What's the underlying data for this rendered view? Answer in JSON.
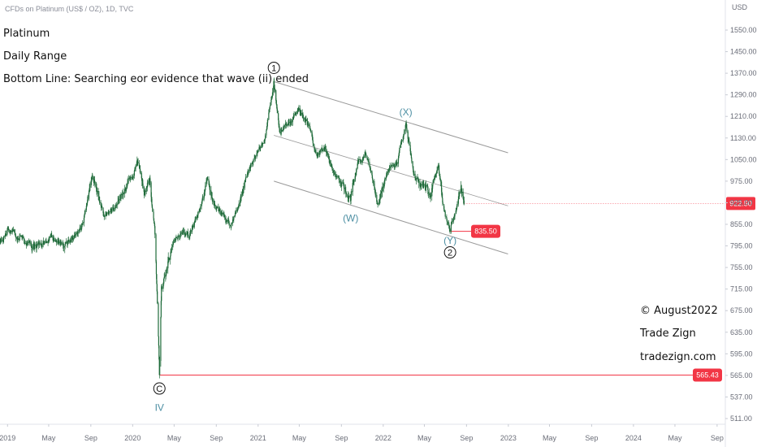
{
  "header": {
    "source": "CFDs on Platinum (US$ / OZ), 1D, TVC",
    "currency": "USD"
  },
  "annotations": {
    "title": "Platinum",
    "subtitle": "Daily Range",
    "bottom_line": "Bottom Line: Searching eor evidence that wave (ii) ended",
    "copyright": "© August2022",
    "brand": "Trade Zign",
    "website": "tradezign.com"
  },
  "colors": {
    "candle": "#1f6b3a",
    "channel": "#9a9a9a",
    "level_line": "#f23645",
    "badge": "#f23645",
    "wave_label": "#4d8fa3"
  },
  "chart_data": {
    "type": "candlestick",
    "title": "CFDs on Platinum (US$ / OZ), 1D, TVC",
    "ylabel": "USD",
    "ylim": [
      500,
      1600
    ],
    "xlim": [
      "2018-12-10",
      "2024-09-25"
    ],
    "y_ticks": [
      511,
      537,
      565,
      595,
      635,
      675,
      715,
      755,
      795,
      855,
      925,
      975,
      1050,
      1130,
      1210,
      1290,
      1370,
      1450,
      1550
    ],
    "x_ticks": [
      {
        "label": "2019",
        "date": "2019-01-01"
      },
      {
        "label": "May",
        "date": "2019-05-01"
      },
      {
        "label": "Sep",
        "date": "2019-09-01"
      },
      {
        "label": "2020",
        "date": "2020-01-01"
      },
      {
        "label": "May",
        "date": "2020-05-01"
      },
      {
        "label": "Sep",
        "date": "2020-09-01"
      },
      {
        "label": "2021",
        "date": "2021-01-01"
      },
      {
        "label": "May",
        "date": "2021-05-01"
      },
      {
        "label": "Sep",
        "date": "2021-09-01"
      },
      {
        "label": "2022",
        "date": "2022-01-01"
      },
      {
        "label": "May",
        "date": "2022-05-01"
      },
      {
        "label": "Sep",
        "date": "2022-09-01"
      },
      {
        "label": "2023",
        "date": "2023-01-01"
      },
      {
        "label": "May",
        "date": "2023-05-01"
      },
      {
        "label": "Sep",
        "date": "2023-09-01"
      },
      {
        "label": "2024",
        "date": "2024-01-01"
      },
      {
        "label": "May",
        "date": "2024-05-01"
      },
      {
        "label": "Sep",
        "date": "2024-09-01"
      }
    ],
    "price_path": [
      {
        "date": "2018-12-10",
        "price": 810
      },
      {
        "date": "2019-01-01",
        "price": 845
      },
      {
        "date": "2019-03-15",
        "price": 790
      },
      {
        "date": "2019-05-10",
        "price": 820
      },
      {
        "date": "2019-06-25",
        "price": 800
      },
      {
        "date": "2019-08-05",
        "price": 850
      },
      {
        "date": "2019-09-05",
        "price": 995
      },
      {
        "date": "2019-10-10",
        "price": 880
      },
      {
        "date": "2019-11-20",
        "price": 930
      },
      {
        "date": "2019-12-31",
        "price": 985
      },
      {
        "date": "2020-01-15",
        "price": 1040
      },
      {
        "date": "2020-02-05",
        "price": 945
      },
      {
        "date": "2020-02-20",
        "price": 985
      },
      {
        "date": "2020-03-05",
        "price": 850
      },
      {
        "date": "2020-03-19",
        "price": 565.43
      },
      {
        "date": "2020-03-25",
        "price": 720
      },
      {
        "date": "2020-04-15",
        "price": 770
      },
      {
        "date": "2020-05-20",
        "price": 830
      },
      {
        "date": "2020-06-15",
        "price": 820
      },
      {
        "date": "2020-07-20",
        "price": 920
      },
      {
        "date": "2020-08-05",
        "price": 980
      },
      {
        "date": "2020-08-25",
        "price": 925
      },
      {
        "date": "2020-09-20",
        "price": 880
      },
      {
        "date": "2020-10-15",
        "price": 860
      },
      {
        "date": "2020-11-20",
        "price": 960
      },
      {
        "date": "2020-12-20",
        "price": 1060
      },
      {
        "date": "2021-01-20",
        "price": 1120
      },
      {
        "date": "2021-02-16",
        "price": 1339
      },
      {
        "date": "2021-03-05",
        "price": 1150
      },
      {
        "date": "2021-04-01",
        "price": 1190
      },
      {
        "date": "2021-04-30",
        "price": 1240
      },
      {
        "date": "2021-05-30",
        "price": 1180
      },
      {
        "date": "2021-06-20",
        "price": 1060
      },
      {
        "date": "2021-07-15",
        "price": 1100
      },
      {
        "date": "2021-08-10",
        "price": 1000
      },
      {
        "date": "2021-09-10",
        "price": 960
      },
      {
        "date": "2021-09-28",
        "price": 930
      },
      {
        "date": "2021-10-20",
        "price": 1045
      },
      {
        "date": "2021-11-10",
        "price": 1075
      },
      {
        "date": "2021-12-15",
        "price": 920
      },
      {
        "date": "2022-01-20",
        "price": 1020
      },
      {
        "date": "2022-02-10",
        "price": 1040
      },
      {
        "date": "2022-03-08",
        "price": 1180
      },
      {
        "date": "2022-04-01",
        "price": 1000
      },
      {
        "date": "2022-05-01",
        "price": 960
      },
      {
        "date": "2022-05-20",
        "price": 940
      },
      {
        "date": "2022-06-10",
        "price": 1030
      },
      {
        "date": "2022-07-01",
        "price": 880
      },
      {
        "date": "2022-07-15",
        "price": 835.5
      },
      {
        "date": "2022-08-01",
        "price": 900
      },
      {
        "date": "2022-08-16",
        "price": 965
      },
      {
        "date": "2022-08-25",
        "price": 922.5
      }
    ],
    "channel": {
      "upper": [
        {
          "date": "2021-02-16",
          "price": 1339
        },
        {
          "date": "2022-12-31",
          "price": 1075
        }
      ],
      "middle": [
        {
          "date": "2021-02-16",
          "price": 1140
        },
        {
          "date": "2022-12-31",
          "price": 915
        }
      ],
      "lower": [
        {
          "date": "2021-02-16",
          "price": 975
        },
        {
          "date": "2022-12-31",
          "price": 780
        }
      ]
    },
    "levels": [
      {
        "price": 565.43,
        "label": "565.43",
        "from": "2020-03-19"
      },
      {
        "price": 835.5,
        "label": "835.50",
        "from": "2022-07-15",
        "to": "2022-11-15"
      }
    ],
    "current_price": {
      "price": 922.5,
      "label": "922.50"
    },
    "wave_labels": [
      {
        "text": "1",
        "circled": true,
        "date": "2021-02-16",
        "price": 1390
      },
      {
        "text": "C",
        "circled": true,
        "date": "2020-03-19",
        "price": 548
      },
      {
        "text": "IV",
        "circled": false,
        "date": "2020-03-19",
        "price": 524
      },
      {
        "text": "(X)",
        "circled": false,
        "date": "2022-03-08",
        "price": 1225
      },
      {
        "text": "(W)",
        "circled": false,
        "date": "2021-09-28",
        "price": 875
      },
      {
        "text": "(Y)",
        "circled": false,
        "date": "2022-07-15",
        "price": 810
      },
      {
        "text": "2",
        "circled": true,
        "date": "2022-07-15",
        "price": 783
      }
    ]
  }
}
